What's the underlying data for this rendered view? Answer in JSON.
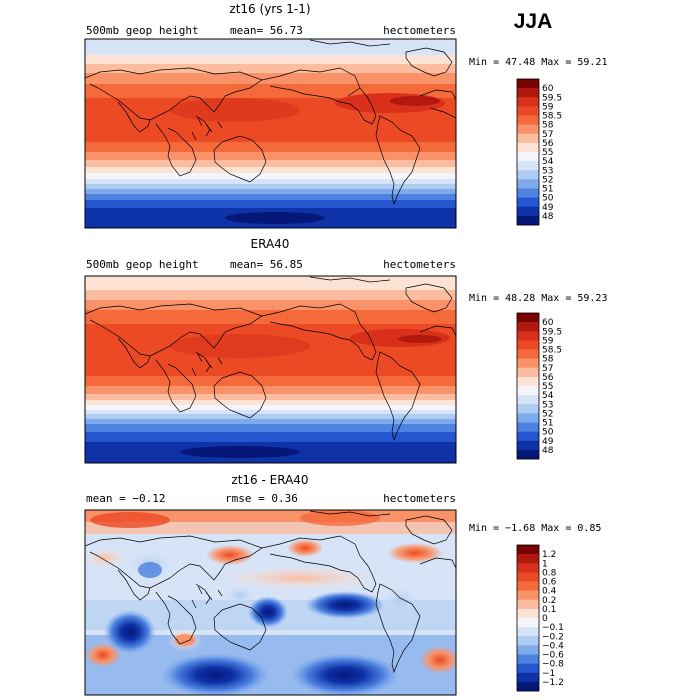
{
  "season": "JJA",
  "panels": [
    {
      "id": "model",
      "title": "zt16 (yrs 1-1)",
      "left_label": "500mb geop height",
      "center_label": "mean=  56.73",
      "rmse_label": "",
      "units": "hectometers",
      "minmax": "Min =  47.48 Max =  59.21",
      "levels": [
        "60",
        "59.5",
        "59",
        "58.5",
        "58",
        "57",
        "56",
        "55",
        "54",
        "53",
        "52",
        "51",
        "50",
        "49",
        "48"
      ]
    },
    {
      "id": "obs",
      "title": "ERA40",
      "left_label": "500mb geop height",
      "center_label": "mean=  56.85",
      "rmse_label": "",
      "units": "hectometers",
      "minmax": "Min =  48.28 Max =  59.23",
      "levels": [
        "60",
        "59.5",
        "59",
        "58.5",
        "58",
        "57",
        "56",
        "55",
        "54",
        "53",
        "52",
        "51",
        "50",
        "49",
        "48"
      ]
    },
    {
      "id": "diff",
      "title": "zt16 - ERA40",
      "left_label": "mean =  −0.12",
      "center_label": "",
      "rmse_label": "rmse =   0.36",
      "units": "hectometers",
      "minmax": "Min =  −1.68 Max =   0.85",
      "levels": [
        "1.2",
        "1",
        "0.8",
        "0.6",
        "0.4",
        "0.2",
        "0.1",
        "0",
        "−0.1",
        "−0.2",
        "−0.4",
        "−0.6",
        "−0.8",
        "−1",
        "−1.2"
      ]
    }
  ],
  "palette": [
    "#7a0403",
    "#b2190e",
    "#d8301b",
    "#ec4a25",
    "#f56a3b",
    "#f99268",
    "#fbbca0",
    "#fde3d4",
    "#f3f5fb",
    "#d7e3f7",
    "#aecbf2",
    "#7eaaeb",
    "#4d82e0",
    "#2556d0",
    "#0e32a8",
    "#061877"
  ]
}
